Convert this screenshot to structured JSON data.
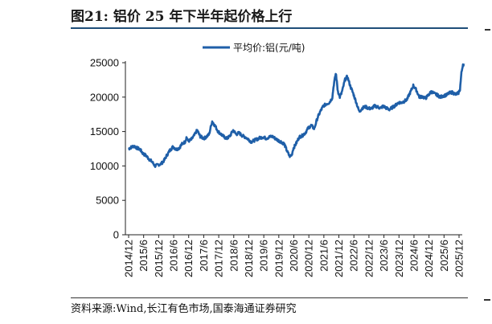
{
  "figure": {
    "title": "图21:  铝价 25 年下半年起价格上行",
    "source": "资料来源:Wind,长江有色市场,国泰海通证券研究"
  },
  "chart_data": {
    "type": "line",
    "title": "",
    "xlabel": "",
    "ylabel": "",
    "ylim": [
      0,
      25000
    ],
    "yticks": [
      0,
      5000,
      10000,
      15000,
      20000,
      25000
    ],
    "ytick_labels": [
      "0",
      "5000",
      "10000",
      "15000",
      "20000",
      "25000"
    ],
    "xticks": [
      "2014/12",
      "2015/6",
      "2015/12",
      "2016/6",
      "2016/12",
      "2017/6",
      "2017/12",
      "2018/6",
      "2018/12",
      "2019/6",
      "2019/12",
      "2020/6",
      "2020/12",
      "2021/6",
      "2021/12",
      "2022/6",
      "2022/12",
      "2023/6",
      "2023/12",
      "2024/6",
      "2024/12",
      "2025/6",
      "2025/12"
    ],
    "legend_position": "top-center",
    "color": "#1f5fa8",
    "series": [
      {
        "name": "平均价:铝(元/吨)",
        "x": [
          2014.92,
          2015.0,
          2015.1,
          2015.2,
          2015.3,
          2015.4,
          2015.5,
          2015.6,
          2015.7,
          2015.8,
          2015.92,
          2016.0,
          2016.1,
          2016.2,
          2016.3,
          2016.4,
          2016.5,
          2016.6,
          2016.7,
          2016.8,
          2016.85,
          2016.9,
          2017.0,
          2017.1,
          2017.2,
          2017.3,
          2017.42,
          2017.5,
          2017.6,
          2017.7,
          2017.8,
          2017.9,
          2018.0,
          2018.1,
          2018.2,
          2018.3,
          2018.4,
          2018.5,
          2018.6,
          2018.7,
          2018.8,
          2018.9,
          2019.0,
          2019.1,
          2019.2,
          2019.3,
          2019.4,
          2019.5,
          2019.6,
          2019.7,
          2019.8,
          2019.9,
          2020.0,
          2020.1,
          2020.2,
          2020.28,
          2020.35,
          2020.4,
          2020.5,
          2020.6,
          2020.7,
          2020.8,
          2020.9,
          2021.0,
          2021.1,
          2021.2,
          2021.3,
          2021.4,
          2021.5,
          2021.6,
          2021.7,
          2021.75,
          2021.82,
          2021.88,
          2021.95,
          2022.0,
          2022.05,
          2022.12,
          2022.2,
          2022.25,
          2022.3,
          2022.4,
          2022.5,
          2022.55,
          2022.6,
          2022.7,
          2022.8,
          2022.9,
          2023.0,
          2023.1,
          2023.2,
          2023.3,
          2023.4,
          2023.5,
          2023.6,
          2023.7,
          2023.8,
          2023.9,
          2024.0,
          2024.1,
          2024.2,
          2024.25,
          2024.3,
          2024.4,
          2024.5,
          2024.6,
          2024.7,
          2024.8,
          2024.9,
          2025.0,
          2025.1,
          2025.2,
          2025.3,
          2025.4,
          2025.5,
          2025.6,
          2025.7,
          2025.8,
          2025.9,
          2025.95,
          2026.0,
          2026.05,
          2026.1
        ],
        "values": [
          12500,
          12700,
          12900,
          12600,
          12400,
          11800,
          11500,
          11000,
          10600,
          10000,
          10200,
          10300,
          10800,
          11600,
          12300,
          12800,
          12400,
          12600,
          13200,
          13500,
          14200,
          13600,
          13800,
          14400,
          15200,
          14300,
          14000,
          14200,
          14600,
          16500,
          15800,
          15000,
          14600,
          14200,
          14000,
          14400,
          15200,
          14600,
          14800,
          14400,
          14200,
          13900,
          13500,
          13700,
          13900,
          14100,
          14200,
          14000,
          14200,
          14300,
          14000,
          13700,
          13500,
          13200,
          12100,
          11400,
          11600,
          12500,
          13300,
          14200,
          14400,
          14800,
          15500,
          15900,
          15400,
          16900,
          17900,
          18700,
          19000,
          19200,
          19900,
          21800,
          23500,
          21000,
          20000,
          20500,
          21200,
          22500,
          23000,
          22300,
          21600,
          20500,
          19200,
          18500,
          17900,
          18400,
          18600,
          18400,
          18300,
          18700,
          18600,
          18400,
          18700,
          18400,
          18200,
          18500,
          18800,
          19200,
          19200,
          19400,
          19700,
          20300,
          20700,
          21700,
          21000,
          20000,
          20100,
          19800,
          20300,
          20800,
          20500,
          20300,
          20000,
          20200,
          20300,
          20600,
          20700,
          20400,
          20600,
          21100,
          23500,
          24800,
          24500
        ]
      }
    ]
  }
}
